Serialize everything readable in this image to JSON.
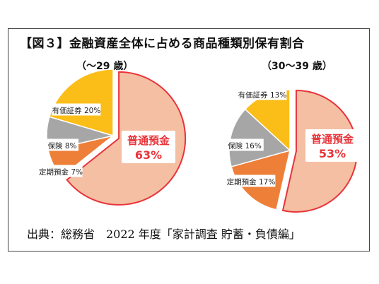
{
  "title": "【図３】金融資産全体に占める商品種類別保有割合",
  "source": "出典：総務省　2022 年度「家計調査 貯蓄・負債編」",
  "colors": {
    "futsu": "#f4bfa3",
    "futsu_border": "#e8343a",
    "teiki": "#ee7f38",
    "hoken": "#a6a6a6",
    "yuka": "#fbbd17",
    "label_red": "#e8343a"
  },
  "chart_data": [
    {
      "type": "pie",
      "title": "（～29 歳）",
      "slices": [
        {
          "name": "普通預金",
          "value": 63,
          "label": "63%",
          "color": "#f4bfa3"
        },
        {
          "name": "定期預金",
          "value": 7,
          "label": "7%",
          "color": "#ee7f38"
        },
        {
          "name": "保険",
          "value": 8,
          "label": "8%",
          "color": "#a6a6a6"
        },
        {
          "name": "有価証券",
          "value": 20,
          "label": "20%",
          "color": "#fbbd17"
        }
      ]
    },
    {
      "type": "pie",
      "title": "（30～39 歳）",
      "slices": [
        {
          "name": "普通預金",
          "value": 53,
          "label": "53%",
          "color": "#f4bfa3"
        },
        {
          "name": "定期預金",
          "value": 17,
          "label": "17%",
          "color": "#ee7f38"
        },
        {
          "name": "保険",
          "value": 16,
          "label": "16%",
          "color": "#a6a6a6"
        },
        {
          "name": "有価証券",
          "value": 13,
          "label": "13%",
          "color": "#fbbd17"
        }
      ]
    }
  ]
}
